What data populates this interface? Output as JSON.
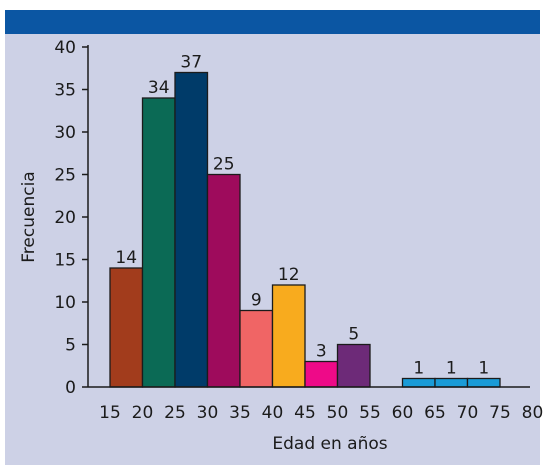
{
  "chart_data": {
    "type": "bar",
    "histogram": true,
    "title": "",
    "xlabel": "Edad en años",
    "ylabel": "Frecuencia",
    "x_ticks": [
      "15",
      "20",
      "25",
      "30",
      "35",
      "40",
      "45",
      "50",
      "55",
      "60",
      "65",
      "70",
      "75",
      "80"
    ],
    "y_ticks": [
      "0",
      "5",
      "10",
      "15",
      "20",
      "25",
      "30",
      "35",
      "40"
    ],
    "xlim": [
      15,
      80
    ],
    "ylim": [
      0,
      40
    ],
    "grid": false,
    "bars": [
      {
        "start": 15,
        "end": 20,
        "value": 14,
        "label": "14",
        "color": "#a23c1c"
      },
      {
        "start": 20,
        "end": 25,
        "value": 34,
        "label": "34",
        "color": "#0b6a55"
      },
      {
        "start": 25,
        "end": 30,
        "value": 37,
        "label": "37",
        "color": "#003b69"
      },
      {
        "start": 30,
        "end": 35,
        "value": 25,
        "label": "25",
        "color": "#9e0b5c"
      },
      {
        "start": 35,
        "end": 40,
        "value": 9,
        "label": "9",
        "color": "#f06565"
      },
      {
        "start": 40,
        "end": 45,
        "value": 12,
        "label": "12",
        "color": "#f8ab1e"
      },
      {
        "start": 45,
        "end": 50,
        "value": 3,
        "label": "3",
        "color": "#ee0a88"
      },
      {
        "start": 50,
        "end": 55,
        "value": 5,
        "label": "5",
        "color": "#6d2a78"
      },
      {
        "start": 60,
        "end": 65,
        "value": 1,
        "label": "1",
        "color": "#1a9bd7"
      },
      {
        "start": 65,
        "end": 70,
        "value": 1,
        "label": "1",
        "color": "#1a9bd7"
      },
      {
        "start": 70,
        "end": 75,
        "value": 1,
        "label": "1",
        "color": "#1a9bd7"
      }
    ],
    "colors": {
      "header_bar": "#0b56a3",
      "plot_background": "#cdd1e6",
      "axis": "#1b1b1b"
    }
  }
}
